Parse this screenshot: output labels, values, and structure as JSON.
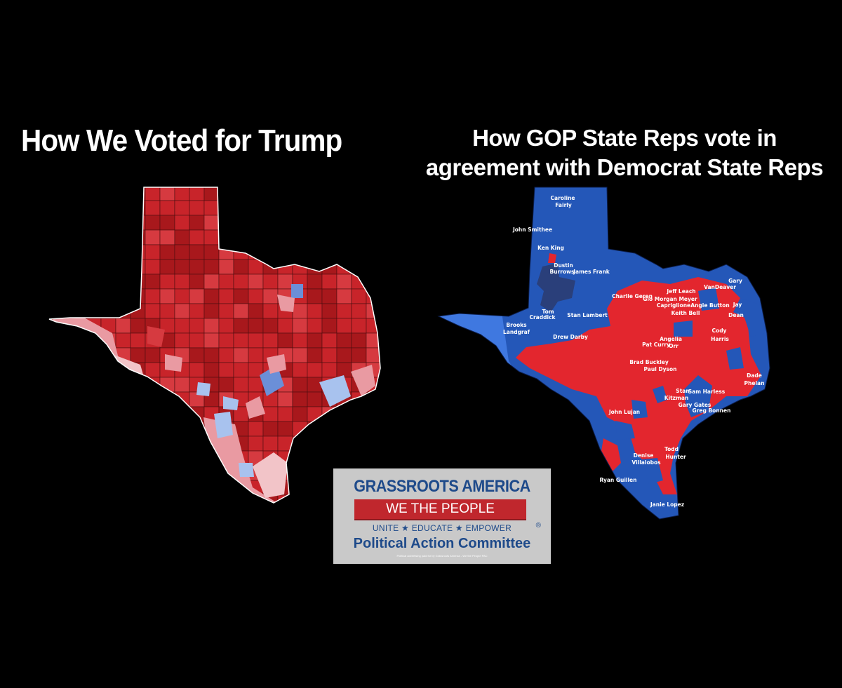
{
  "left_panel": {
    "title": "How We Voted for Trump",
    "colors": {
      "deep_red": "#a8181c",
      "red": "#c8242a",
      "mid_red": "#d63a40",
      "pink": "#e99aa2",
      "light_pink": "#f2c4c8",
      "blue": "#6b8fd8",
      "light_blue": "#a8c2ee",
      "border": "#4a0e10"
    }
  },
  "right_panel": {
    "title_line1": "How GOP State Reps vote in",
    "title_line2": "agreement with Democrat State Reps",
    "colors": {
      "red": "#e3262e",
      "blue": "#2457b8",
      "bright_blue": "#3f78e0",
      "dark_navy": "#2a3f7a"
    },
    "rep_labels": [
      "Caroline",
      "Fairly",
      "John Smithee",
      "Ken King",
      "James Frank",
      "Dustin",
      "Burrows",
      "Tom",
      "Craddick",
      "Stan Lambert",
      "Brooks",
      "Landgraf",
      "Drew Darby",
      "Gary",
      "VanDeaver",
      "Jeff Leach",
      "Charlie Geren",
      "Gio Morgan Meyer",
      "Capriglione",
      "Angie Button",
      "Jay",
      "Dean",
      "Keith Bell",
      "Cody",
      "Harris",
      "Angelia",
      "Pat Curry",
      "Orr",
      "Brad Buckley",
      "Paul Dyson",
      "Dade",
      "Phelan",
      "Stan",
      "Sam Harless",
      "Kitzman",
      "Gary Gates",
      "Greg Bonnen",
      "John Lujan",
      "Todd",
      "Denise",
      "Hunter",
      "Villalobos",
      "Ryan Guillen",
      "Janie Lopez"
    ]
  },
  "logo": {
    "org_name": "GRASSROOTS AMERICA",
    "ribbon_text": "WE THE PEOPLE",
    "tagline": "UNITE ★ EDUCATE ★ EMPOWER",
    "registered": "®",
    "committee": "Political Action Committee",
    "fine_print": "Political advertising paid for by Grassroots America - We the People PAC"
  }
}
